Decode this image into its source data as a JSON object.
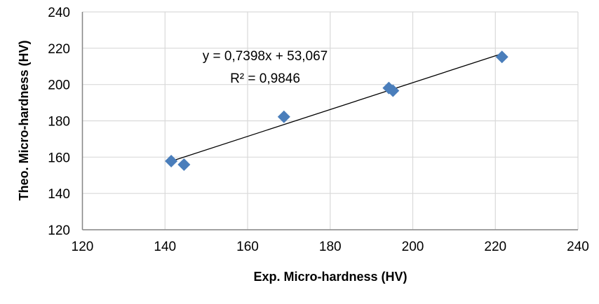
{
  "chart_data": {
    "type": "scatter",
    "title": "",
    "xlabel": "Exp. Micro-hardness (HV)",
    "ylabel": "Theo. Micro-hardness (HV)",
    "xlim": [
      120,
      240
    ],
    "ylim": [
      120,
      240
    ],
    "xticks": [
      "120",
      "140",
      "160",
      "180",
      "200",
      "220",
      "240"
    ],
    "yticks": [
      "120",
      "140",
      "160",
      "180",
      "200",
      "220",
      "240"
    ],
    "grid": true,
    "marker_color": "#4a7ebb",
    "series": [
      {
        "name": "Micro-hardness",
        "x": [
          141.5,
          144.6,
          168.8,
          194.2,
          195.2,
          221.6
        ],
        "y": [
          157.8,
          155.9,
          182.2,
          198.1,
          196.6,
          215.2
        ]
      }
    ],
    "trendline": {
      "slope": 0.7398,
      "intercept": 53.067,
      "x_range": [
        141.5,
        221.6
      ]
    },
    "annotations": {
      "equation": "y = 0,7398x + 53,067",
      "r_squared": "R² = 0,9846"
    }
  }
}
